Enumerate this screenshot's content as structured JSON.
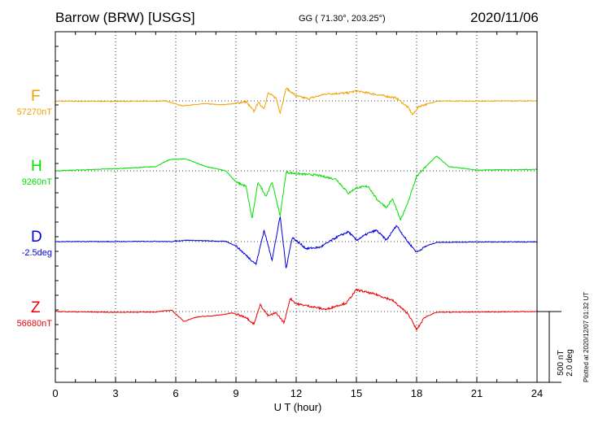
{
  "header": {
    "station": "Barrow (BRW)  [USGS]",
    "coords": "GG ( 71.30°, 203.25°)",
    "date": "2020/11/06"
  },
  "scale": {
    "nt": "500 nT",
    "deg": "2.0 deg"
  },
  "stamp": "Plotted at 2020/12/07 01:32 UT",
  "chart_data": {
    "type": "line",
    "xlabel": "U T (hour)",
    "xlim": [
      0,
      24
    ],
    "xticks": [
      0,
      3,
      6,
      9,
      12,
      15,
      18,
      21,
      24
    ],
    "scale_per_division": "500 nT / 2.0 deg",
    "grid": true,
    "series": [
      {
        "name": "F",
        "baseline": "57270nT",
        "color": "#f0a000",
        "points": [
          [
            0,
            -2
          ],
          [
            3,
            -3
          ],
          [
            5,
            -2
          ],
          [
            5.5,
            0
          ],
          [
            6.3,
            -35
          ],
          [
            7.5,
            -20
          ],
          [
            8.2,
            -28
          ],
          [
            8.9,
            -20
          ],
          [
            9.5,
            -5
          ],
          [
            9.9,
            -75
          ],
          [
            10.1,
            -10
          ],
          [
            10.4,
            -55
          ],
          [
            10.6,
            55
          ],
          [
            11.0,
            20
          ],
          [
            11.2,
            -85
          ],
          [
            11.5,
            90
          ],
          [
            12,
            35
          ],
          [
            12.6,
            15
          ],
          [
            13.5,
            50
          ],
          [
            14.5,
            55
          ],
          [
            15,
            70
          ],
          [
            16,
            45
          ],
          [
            17,
            20
          ],
          [
            17.6,
            -50
          ],
          [
            17.8,
            -100
          ],
          [
            18.1,
            -40
          ],
          [
            19,
            -2
          ],
          [
            24,
            0
          ]
        ]
      },
      {
        "name": "H",
        "baseline": "9260nT",
        "color": "#00e000",
        "points": [
          [
            0,
            0
          ],
          [
            3,
            15
          ],
          [
            5,
            30
          ],
          [
            5.7,
            80
          ],
          [
            6.5,
            85
          ],
          [
            7.5,
            30
          ],
          [
            8.5,
            0
          ],
          [
            9,
            -80
          ],
          [
            9.5,
            -110
          ],
          [
            9.8,
            -340
          ],
          [
            10.1,
            -80
          ],
          [
            10.5,
            -180
          ],
          [
            10.8,
            -80
          ],
          [
            11.2,
            -320
          ],
          [
            11.5,
            -10
          ],
          [
            12,
            -20
          ],
          [
            13,
            -30
          ],
          [
            14,
            -60
          ],
          [
            14.6,
            -160
          ],
          [
            15,
            -120
          ],
          [
            15.6,
            -110
          ],
          [
            16,
            -200
          ],
          [
            16.5,
            -260
          ],
          [
            16.8,
            -200
          ],
          [
            17.2,
            -350
          ],
          [
            17.6,
            -210
          ],
          [
            18,
            -40
          ],
          [
            18.6,
            50
          ],
          [
            19,
            105
          ],
          [
            19.6,
            30
          ],
          [
            21,
            5
          ],
          [
            24,
            10
          ]
        ]
      },
      {
        "name": "D",
        "baseline": "-2.5deg",
        "color": "#0000dd",
        "points": [
          [
            0,
            0
          ],
          [
            3,
            0
          ],
          [
            5,
            2
          ],
          [
            5.7,
            -0.2
          ],
          [
            6.5,
            10
          ],
          [
            8.5,
            1
          ],
          [
            9,
            -30
          ],
          [
            9.6,
            -110
          ],
          [
            10,
            -160
          ],
          [
            10.4,
            80
          ],
          [
            10.8,
            -130
          ],
          [
            11.2,
            180
          ],
          [
            11.5,
            -190
          ],
          [
            11.8,
            30
          ],
          [
            12.5,
            -50
          ],
          [
            13.2,
            -40
          ],
          [
            14,
            30
          ],
          [
            14.6,
            70
          ],
          [
            15,
            10
          ],
          [
            15.6,
            60
          ],
          [
            16,
            80
          ],
          [
            16.5,
            10
          ],
          [
            17,
            115
          ],
          [
            17.5,
            10
          ],
          [
            18,
            -75
          ],
          [
            18.5,
            -30
          ],
          [
            19,
            -5
          ],
          [
            21,
            -3
          ],
          [
            24,
            -2
          ]
        ]
      },
      {
        "name": "Z",
        "baseline": "56680nT",
        "color": "#ee0000",
        "points": [
          [
            0,
            0
          ],
          [
            3,
            -5
          ],
          [
            5,
            -3
          ],
          [
            5.8,
            10
          ],
          [
            6.4,
            -70
          ],
          [
            7,
            -40
          ],
          [
            8.2,
            -25
          ],
          [
            8.8,
            -10
          ],
          [
            9.5,
            -40
          ],
          [
            9.9,
            -90
          ],
          [
            10.2,
            50
          ],
          [
            10.6,
            -30
          ],
          [
            11,
            -10
          ],
          [
            11.4,
            -80
          ],
          [
            11.7,
            95
          ],
          [
            12,
            55
          ],
          [
            12.6,
            40
          ],
          [
            13.5,
            15
          ],
          [
            14,
            40
          ],
          [
            14.5,
            60
          ],
          [
            15,
            155
          ],
          [
            16,
            120
          ],
          [
            16.8,
            80
          ],
          [
            17.6,
            -20
          ],
          [
            18,
            -130
          ],
          [
            18.4,
            -40
          ],
          [
            19,
            -5
          ],
          [
            24,
            0
          ]
        ]
      }
    ]
  }
}
